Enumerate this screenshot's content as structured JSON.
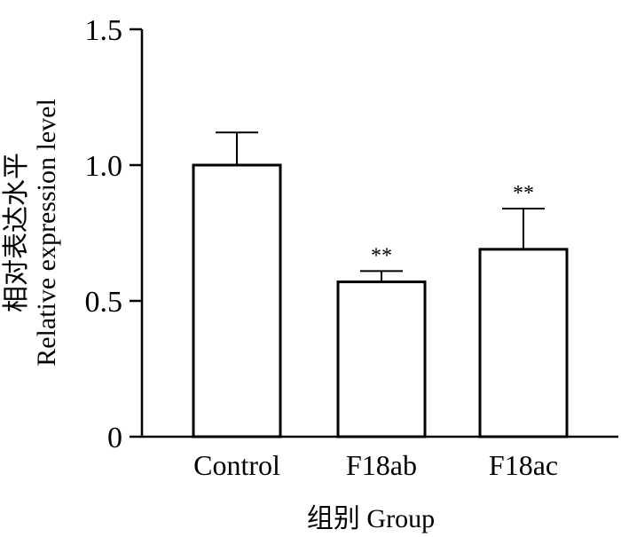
{
  "chart_data": {
    "type": "bar",
    "title": "",
    "categories": [
      "Control",
      "F18ab",
      "F18ac"
    ],
    "values": [
      1.0,
      0.57,
      0.69
    ],
    "error_upper": [
      1.12,
      0.61,
      0.84
    ],
    "significance": [
      "",
      "**",
      "**"
    ],
    "xlabel": "组别 Group",
    "ylabel_line1": "相对表达水平",
    "ylabel_line2": "Relative expression level",
    "ylim": [
      0,
      1.5
    ],
    "yticks": [
      0,
      0.5,
      1.0,
      1.5
    ],
    "ytick_labels": [
      "0",
      "0.5",
      "1.0",
      "1.5"
    ],
    "grid": false,
    "bar_fill": "#ffffff",
    "bar_stroke": "#000000"
  }
}
